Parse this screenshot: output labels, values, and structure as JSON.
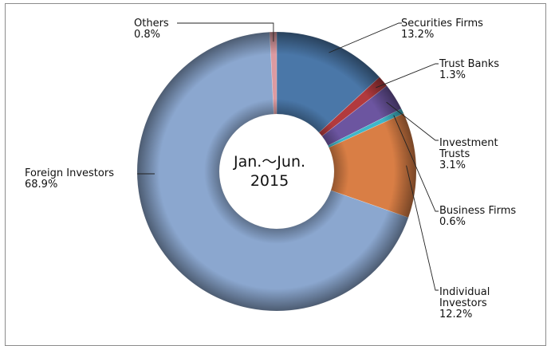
{
  "chart_data": {
    "type": "pie",
    "style": "donut",
    "center_label": [
      "Jan.～Jun.",
      "2015"
    ],
    "series": [
      {
        "name": "Securities Firms",
        "value": 13.2,
        "label": "13.2%",
        "color": "#4a77a8"
      },
      {
        "name": "Trust Banks",
        "value": 1.3,
        "label": "1.3%",
        "color": "#b23a3e"
      },
      {
        "name": "Investment Trusts",
        "value": 3.1,
        "label": "3.1%",
        "color": "#6c55a0"
      },
      {
        "name": "Business Firms",
        "value": 0.6,
        "label": "0.6%",
        "color": "#3fb6c9"
      },
      {
        "name": "Individual Investors",
        "value": 12.2,
        "label": "12.2%",
        "color": "#d97e45"
      },
      {
        "name": "Foreign Investors",
        "value": 68.9,
        "label": "68.9%",
        "color": "#8ba7cf"
      },
      {
        "name": "Others",
        "value": 0.8,
        "label": "0.8%",
        "color": "#dc9aa1"
      }
    ],
    "category_label_lines": {
      "Securities Firms": [
        "Securities Firms"
      ],
      "Trust Banks": [
        "Trust Banks"
      ],
      "Investment Trusts": [
        "Investment",
        "Trusts"
      ],
      "Business Firms": [
        "Business Firms"
      ],
      "Individual Investors": [
        "Individual",
        "Investors"
      ],
      "Foreign Investors": [
        "Foreign Investors"
      ],
      "Others": [
        "Others"
      ]
    },
    "start": "12 o'clock",
    "direction": "clockwise"
  }
}
